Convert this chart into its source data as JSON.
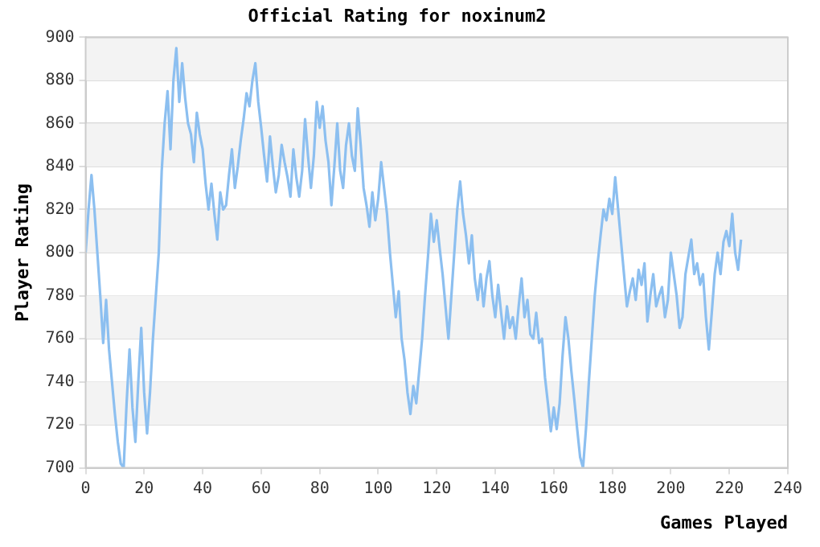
{
  "chart_data": {
    "type": "line",
    "title": "Official Rating for noxinum2",
    "xlabel": "Games Played",
    "ylabel": "Player Rating",
    "xlim": [
      0,
      240
    ],
    "xticks": [
      0,
      20,
      40,
      60,
      80,
      100,
      120,
      140,
      160,
      180,
      200,
      220,
      240
    ],
    "ylim": [
      700,
      900
    ],
    "yticks": [
      700,
      720,
      740,
      760,
      780,
      800,
      820,
      840,
      860,
      880,
      900
    ],
    "grid": "y",
    "legend": false,
    "marker": "none",
    "line_style": "solid",
    "x": [
      0,
      1,
      2,
      3,
      4,
      5,
      6,
      7,
      8,
      9,
      10,
      11,
      12,
      13,
      14,
      15,
      16,
      17,
      18,
      19,
      20,
      21,
      22,
      23,
      24,
      25,
      26,
      27,
      28,
      29,
      30,
      31,
      32,
      33,
      34,
      35,
      36,
      37,
      38,
      39,
      40,
      41,
      42,
      43,
      44,
      45,
      46,
      47,
      48,
      49,
      50,
      51,
      52,
      53,
      54,
      55,
      56,
      57,
      58,
      59,
      60,
      61,
      62,
      63,
      64,
      65,
      66,
      67,
      68,
      69,
      70,
      71,
      72,
      73,
      74,
      75,
      76,
      77,
      78,
      79,
      80,
      81,
      82,
      83,
      84,
      85,
      86,
      87,
      88,
      89,
      90,
      91,
      92,
      93,
      94,
      95,
      96,
      97,
      98,
      99,
      100,
      101,
      102,
      103,
      104,
      105,
      106,
      107,
      108,
      109,
      110,
      111,
      112,
      113,
      114,
      115,
      116,
      117,
      118,
      119,
      120,
      121,
      122,
      123,
      124,
      125,
      126,
      127,
      128,
      129,
      130,
      131,
      132,
      133,
      134,
      135,
      136,
      137,
      138,
      139,
      140,
      141,
      142,
      143,
      144,
      145,
      146,
      147,
      148,
      149,
      150,
      151,
      152,
      153,
      154,
      155,
      156,
      157,
      158,
      159,
      160,
      161,
      162,
      163,
      164,
      165,
      166,
      167,
      168,
      169,
      170,
      171,
      172,
      173,
      174,
      175,
      176,
      177,
      178,
      179,
      180,
      181,
      182,
      183,
      184,
      185,
      186,
      187,
      188,
      189,
      190,
      191,
      192,
      193,
      194,
      195,
      196,
      197,
      198,
      199,
      200,
      201,
      202,
      203,
      204,
      205,
      206,
      207,
      208,
      209,
      210,
      211,
      212,
      213,
      214,
      215,
      216,
      217,
      218,
      219,
      220,
      221,
      222,
      223,
      224
    ],
    "series": [
      {
        "color": "#8cbff0",
        "values": [
          800,
          820,
          836,
          820,
          800,
          780,
          758,
          778,
          755,
          740,
          725,
          712,
          702,
          700,
          730,
          755,
          728,
          712,
          740,
          765,
          735,
          716,
          735,
          760,
          780,
          800,
          838,
          860,
          875,
          848,
          880,
          895,
          870,
          888,
          872,
          860,
          855,
          842,
          865,
          855,
          848,
          832,
          820,
          832,
          818,
          806,
          828,
          820,
          822,
          836,
          848,
          830,
          840,
          852,
          862,
          874,
          868,
          880,
          888,
          870,
          858,
          845,
          833,
          854,
          840,
          828,
          836,
          850,
          842,
          835,
          826,
          848,
          835,
          826,
          838,
          862,
          845,
          830,
          845,
          870,
          858,
          868,
          852,
          842,
          822,
          840,
          860,
          838,
          830,
          850,
          860,
          845,
          838,
          867,
          850,
          830,
          822,
          812,
          828,
          815,
          825,
          842,
          830,
          818,
          800,
          785,
          770,
          782,
          760,
          750,
          735,
          725,
          738,
          730,
          745,
          760,
          780,
          798,
          818,
          805,
          815,
          802,
          790,
          775,
          760,
          780,
          800,
          820,
          833,
          818,
          808,
          795,
          808,
          788,
          778,
          790,
          775,
          788,
          796,
          780,
          770,
          785,
          772,
          760,
          775,
          765,
          770,
          760,
          775,
          788,
          770,
          778,
          762,
          760,
          772,
          758,
          760,
          742,
          730,
          717,
          728,
          718,
          730,
          752,
          770,
          760,
          745,
          732,
          718,
          705,
          700,
          718,
          740,
          760,
          780,
          795,
          808,
          820,
          815,
          825,
          818,
          835,
          820,
          805,
          790,
          775,
          782,
          788,
          778,
          792,
          785,
          795,
          768,
          780,
          790,
          775,
          780,
          784,
          770,
          778,
          800,
          790,
          780,
          765,
          770,
          790,
          798,
          806,
          790,
          795,
          785,
          790,
          770,
          755,
          772,
          790,
          800,
          790,
          805,
          810,
          803,
          818,
          800,
          792,
          806
        ]
      }
    ]
  }
}
